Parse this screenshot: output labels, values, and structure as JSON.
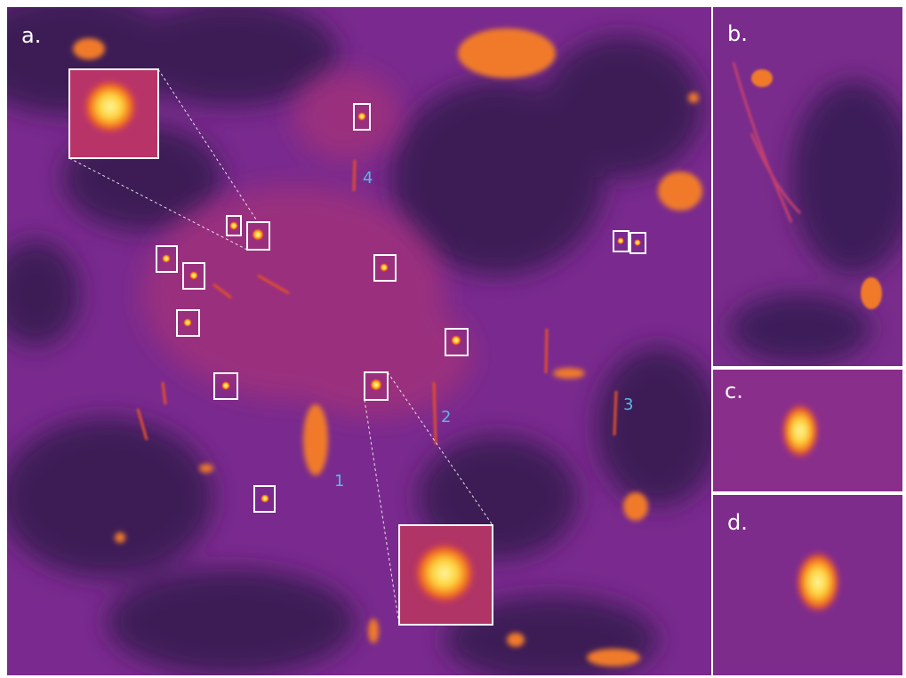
{
  "panels": [
    {
      "label": "a."
    },
    {
      "label": "b."
    },
    {
      "label": "c."
    },
    {
      "label": "d."
    }
  ],
  "markers": [
    "1",
    "2",
    "3",
    "4"
  ]
}
